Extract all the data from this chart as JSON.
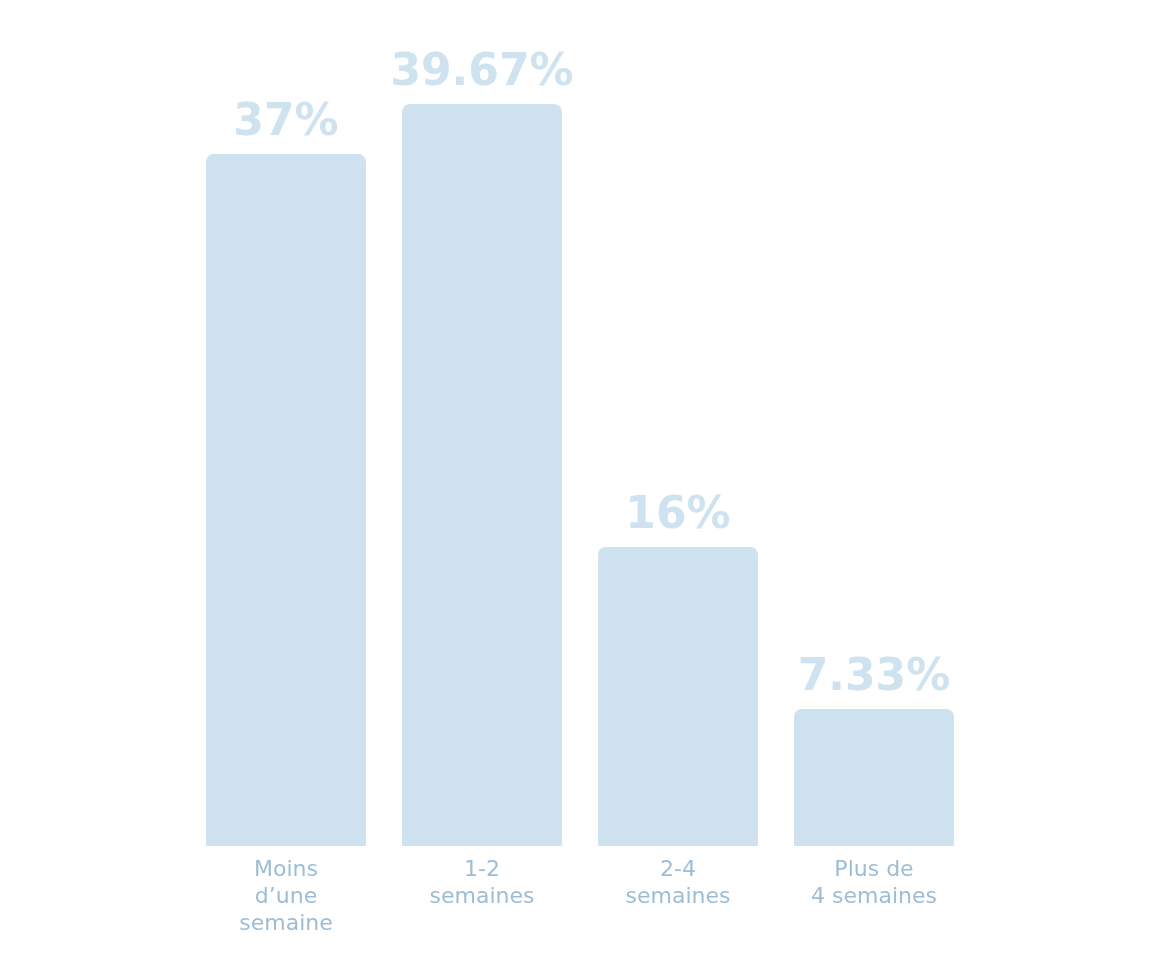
{
  "chart_data": {
    "type": "bar",
    "categories": [
      "Moins\nd’une\nsemaine",
      "1-2\nsemaines",
      "2-4\nsemaines",
      "Plus de\n4 semaines"
    ],
    "values": [
      37,
      39.67,
      16,
      7.33
    ],
    "value_labels": [
      "37%",
      "39.67%",
      "16%",
      "7.33%"
    ],
    "color": "#cfe2ef",
    "grid": false
  }
}
